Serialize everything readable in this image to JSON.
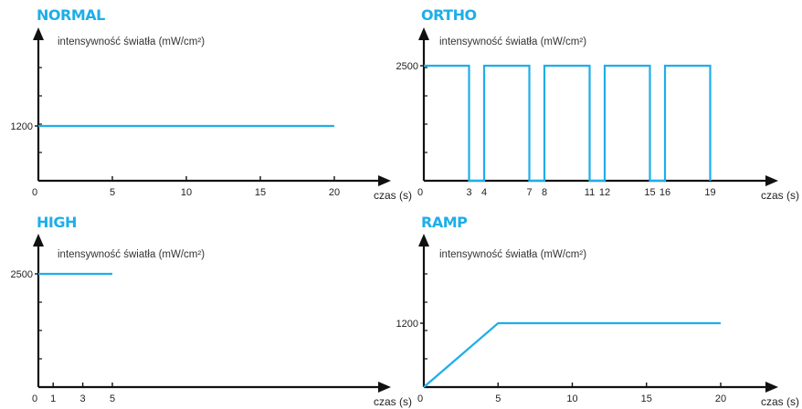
{
  "colors": {
    "accent": "#1eaee8",
    "axis": "#111111"
  },
  "chart_data": [
    {
      "type": "line",
      "title": "NORMAL",
      "ylabel": "intensywność światła (mW/cm²)",
      "xlabel": "czas (s)",
      "xlim": [
        0,
        24
      ],
      "ylim": [
        0,
        2900
      ],
      "xticks": [
        0,
        5,
        10,
        15,
        20
      ],
      "xtick_labels": [
        "0",
        "5",
        "10",
        "15",
        "20"
      ],
      "yticks": [
        1200
      ],
      "ytick_labels": [
        "1200"
      ],
      "series": [
        {
          "x": [
            0,
            20
          ],
          "y": [
            1200,
            1200
          ]
        }
      ]
    },
    {
      "type": "line",
      "title": "ORTHO",
      "ylabel": "intensywność światła (mW/cm²)",
      "xlabel": "czas (s)",
      "xlim": [
        0,
        23.5
      ],
      "ylim": [
        0,
        3800
      ],
      "xticks": [
        0,
        3,
        4,
        7,
        8,
        11,
        12,
        15,
        16,
        19
      ],
      "xtick_labels": [
        "0",
        "3",
        "4",
        "7",
        "8",
        "11",
        "12",
        "15",
        "16",
        "19"
      ],
      "yticks": [
        2500
      ],
      "ytick_labels": [
        "2500"
      ],
      "series": [
        {
          "x": [
            0,
            3,
            3,
            4,
            4,
            7,
            7,
            8,
            8,
            11,
            11,
            12,
            12,
            15,
            15,
            16,
            16,
            19,
            19
          ],
          "y": [
            2500,
            2500,
            0,
            0,
            2500,
            2500,
            0,
            0,
            2500,
            2500,
            0,
            0,
            2500,
            2500,
            0,
            0,
            2500,
            2500,
            0
          ]
        }
      ]
    },
    {
      "type": "line",
      "title": "HIGH",
      "ylabel": "intensywność światła (mW/cm²)",
      "xlabel": "czas (s)",
      "xlim": [
        0,
        24
      ],
      "ylim": [
        0,
        3800
      ],
      "xticks": [
        0,
        1,
        3,
        5
      ],
      "xtick_labels": [
        "0",
        "1",
        "3",
        "5"
      ],
      "yticks": [
        2500
      ],
      "ytick_labels": [
        "2500"
      ],
      "series": [
        {
          "x": [
            0,
            5
          ],
          "y": [
            2500,
            2500
          ]
        }
      ]
    },
    {
      "type": "line",
      "title": "RAMP",
      "ylabel": "intensywność światła (mW/cm²)",
      "xlabel": "czas (s)",
      "xlim": [
        0,
        24
      ],
      "ylim": [
        0,
        3000
      ],
      "xticks": [
        0,
        5,
        10,
        15,
        20
      ],
      "xtick_labels": [
        "0",
        "5",
        "10",
        "15",
        "20"
      ],
      "yticks": [
        1200
      ],
      "ytick_labels": [
        "1200"
      ],
      "series": [
        {
          "x": [
            0,
            5,
            20
          ],
          "y": [
            0,
            1200,
            1200
          ]
        }
      ]
    }
  ]
}
